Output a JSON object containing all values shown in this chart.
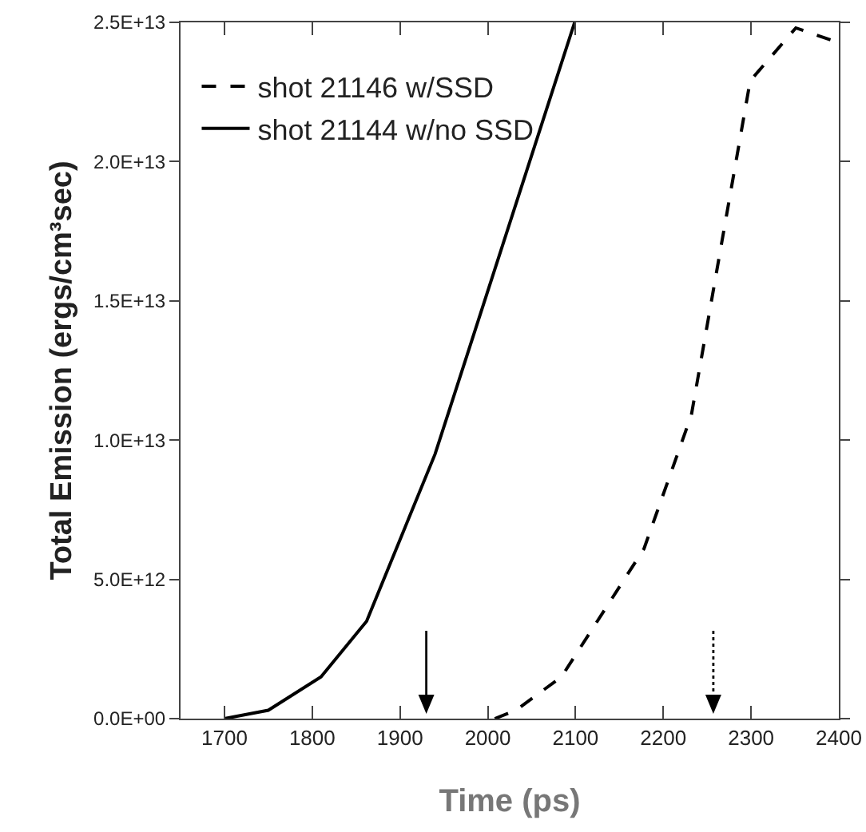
{
  "chart_data": {
    "type": "line",
    "xlabel": "Time (ps)",
    "ylabel": "Total Emission (ergs/cm³sec)",
    "series": [
      {
        "name": "shot 21146 w/SSD",
        "color": "#000000",
        "line_style": "dashed",
        "x": [
          2008,
          2032,
          2084,
          2178,
          2232,
          2299,
          2351,
          2397
        ],
        "values": [
          0,
          300000000000.0,
          1500000000000.0,
          6100000000000.0,
          10900000000000.0,
          22900000000000.0,
          24800000000000.0,
          24300000000000.0
        ]
      },
      {
        "name": "shot 21144 w/no SSD",
        "color": "#000000",
        "line_style": "solid",
        "x": [
          1700,
          1750,
          1810,
          1862,
          1940,
          2099
        ],
        "values": [
          0,
          300000000000.0,
          1500000000000.0,
          3500000000000.0,
          9500000000000.0,
          25000000000000.0
        ]
      }
    ],
    "ref_lines": [
      {
        "axis": "x",
        "value": 1930,
        "line_style": "solid"
      },
      {
        "axis": "x",
        "value": 2257,
        "line_style": "dotted"
      }
    ],
    "xlim": [
      1650,
      2400
    ],
    "xticks": [
      1700,
      1800,
      1900,
      2000,
      2100,
      2200,
      2300,
      2400
    ],
    "ylim": [
      0,
      25000000000000.0
    ],
    "yticks": [
      {
        "value": 0,
        "label": "0.0E+00"
      },
      {
        "value": 5000000000000.0,
        "label": "5.0E+12"
      },
      {
        "value": 10000000000000.0,
        "label": "1.0E+13"
      },
      {
        "value": 15000000000000.0,
        "label": "1.5E+13"
      },
      {
        "value": 20000000000000.0,
        "label": "2.0E+13"
      },
      {
        "value": 25000000000000.0,
        "label": "2.5E+13"
      }
    ],
    "grid": false,
    "legend": "top left",
    "marker": "none"
  }
}
